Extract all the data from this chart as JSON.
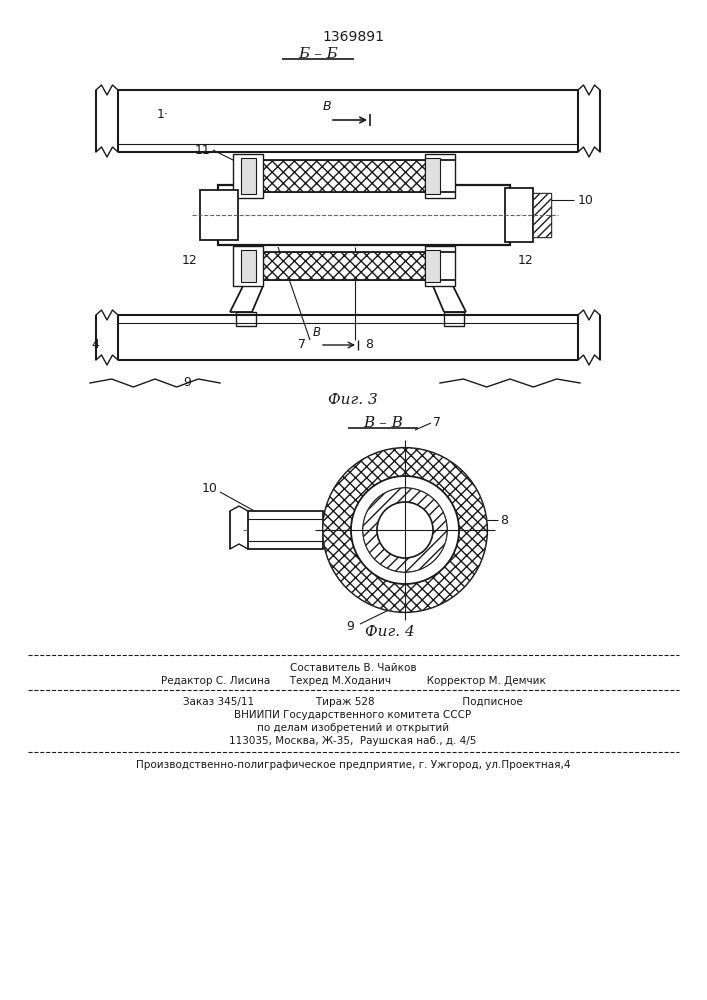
{
  "title": "1369891",
  "fig3_label": "Б – Б",
  "fig4_label": "В – В",
  "fig3_caption": "Фиг. 3",
  "fig4_caption": "Фиг. 4",
  "line_color": "#1a1a1a",
  "labels": {
    "label_1": "1·",
    "label_4": "4",
    "label_7": "7",
    "label_8": "8",
    "label_9": "9",
    "label_10": "10",
    "label_11": "11",
    "label_12L": "12",
    "label_12R": "12",
    "arrow_text": "В"
  },
  "footer": {
    "line1": "Составитель В. Чайков",
    "line2": "Редактор С. Лисина      Техред М.Ходанич           Корректор М. Демчик",
    "line3": "Заказ 345/11                   Тираж 528                           Подписное",
    "line4": "ВНИИПИ Государственного комитета СССР",
    "line5": "по делам изобретений и открытий",
    "line6": "113035, Москва, Ж-35,  Раушская наб., д. 4/5",
    "line7": "Производственно-полиграфическое предприятие, г. Ужгород, ул.Проектная,4"
  }
}
